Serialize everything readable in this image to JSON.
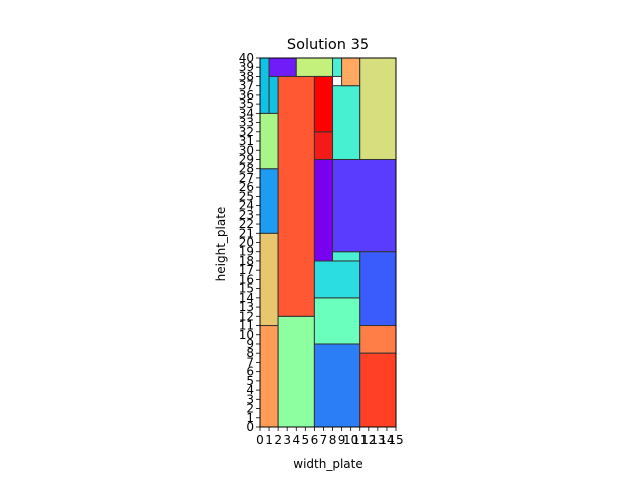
{
  "chart_data": {
    "type": "rectangle-packing",
    "title": "Solution 35",
    "xlabel": "width_plate",
    "ylabel": "height_plate",
    "xlim": [
      0,
      15
    ],
    "ylim": [
      0,
      40
    ],
    "x_ticks": [
      "0",
      "1",
      "2",
      "3",
      "4",
      "5",
      "6",
      "7",
      "8",
      "9",
      "10",
      "11",
      "12",
      "13",
      "14",
      "15"
    ],
    "y_ticks": [
      "0",
      "1",
      "2",
      "3",
      "4",
      "5",
      "6",
      "7",
      "8",
      "9",
      "10",
      "11",
      "12",
      "13",
      "14",
      "15",
      "16",
      "17",
      "18",
      "19",
      "20",
      "21",
      "22",
      "23",
      "24",
      "25",
      "26",
      "27",
      "28",
      "29",
      "30",
      "31",
      "32",
      "33",
      "34",
      "35",
      "36",
      "37",
      "38",
      "39",
      "40"
    ],
    "rectangles": [
      {
        "x": 0,
        "y": 0,
        "w": 2,
        "h": 11,
        "color": "#ff9c58"
      },
      {
        "x": 0,
        "y": 11,
        "w": 2,
        "h": 10,
        "color": "#e8c66e"
      },
      {
        "x": 0,
        "y": 21,
        "w": 2,
        "h": 7,
        "color": "#1c9cf2"
      },
      {
        "x": 0,
        "y": 28,
        "w": 2,
        "h": 6,
        "color": "#a9f58a"
      },
      {
        "x": 0,
        "y": 34,
        "w": 1,
        "h": 6,
        "color": "#12c2e4"
      },
      {
        "x": 1,
        "y": 34,
        "w": 1,
        "h": 4,
        "color": "#12c2e4"
      },
      {
        "x": 1,
        "y": 38,
        "w": 3,
        "h": 2,
        "color": "#6f1cf9"
      },
      {
        "x": 2,
        "y": 0,
        "w": 4,
        "h": 12,
        "color": "#8effa0"
      },
      {
        "x": 2,
        "y": 12,
        "w": 4,
        "h": 26,
        "color": "#ff5833"
      },
      {
        "x": 4,
        "y": 38,
        "w": 4,
        "h": 2,
        "color": "#c4f07c"
      },
      {
        "x": 6,
        "y": 0,
        "w": 5,
        "h": 9,
        "color": "#2b7ef6"
      },
      {
        "x": 6,
        "y": 9,
        "w": 5,
        "h": 5,
        "color": "#6affbc"
      },
      {
        "x": 6,
        "y": 14,
        "w": 5,
        "h": 4,
        "color": "#2bdde0"
      },
      {
        "x": 6,
        "y": 18,
        "w": 2,
        "h": 11,
        "color": "#7a00f0"
      },
      {
        "x": 6,
        "y": 29,
        "w": 2,
        "h": 3,
        "color": "#f41a18"
      },
      {
        "x": 6,
        "y": 32,
        "w": 2,
        "h": 6,
        "color": "#ff0000"
      },
      {
        "x": 8,
        "y": 38,
        "w": 1,
        "h": 2,
        "color": "#4af0d4"
      },
      {
        "x": 8,
        "y": 18,
        "w": 3,
        "h": 1,
        "color": "#4af0d4"
      },
      {
        "x": 8,
        "y": 19,
        "w": 7,
        "h": 10,
        "color": "#5a3cff"
      },
      {
        "x": 8,
        "y": 29,
        "w": 3,
        "h": 8,
        "color": "#46f0d0"
      },
      {
        "x": 9,
        "y": 37,
        "w": 2,
        "h": 3,
        "color": "#ffaa60"
      },
      {
        "x": 11,
        "y": 29,
        "w": 4,
        "h": 11,
        "color": "#d6de7e"
      },
      {
        "x": 11,
        "y": 11,
        "w": 4,
        "h": 8,
        "color": "#3a5cfc"
      },
      {
        "x": 11,
        "y": 8,
        "w": 4,
        "h": 3,
        "color": "#ff7e48"
      },
      {
        "x": 11,
        "y": 0,
        "w": 4,
        "h": 8,
        "color": "#ff4024"
      }
    ]
  }
}
